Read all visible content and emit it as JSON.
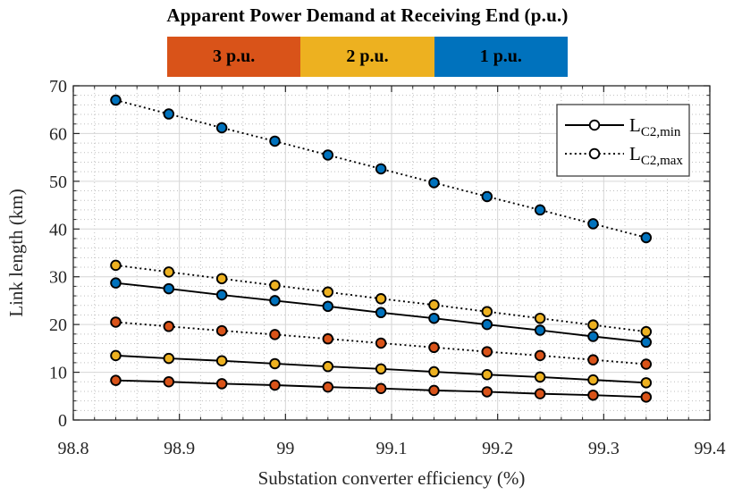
{
  "header": {
    "title": "Apparent Power Demand at Receiving End (p.u.)",
    "bands": [
      {
        "label": "3 p.u.",
        "color": "#D95319"
      },
      {
        "label": "2 p.u.",
        "color": "#EDB120"
      },
      {
        "label": "1 p.u.",
        "color": "#0072BD"
      }
    ]
  },
  "chart_data": {
    "type": "line",
    "title": "Apparent Power Demand at Receiving End (p.u.)",
    "xlabel": "Substation converter efficiency (%)",
    "ylabel": "Link length (km)",
    "xlim": [
      98.8,
      99.4
    ],
    "ylim": [
      0,
      70
    ],
    "xticks": [
      98.8,
      98.9,
      99.0,
      99.1,
      99.2,
      99.3,
      99.4
    ],
    "xtick_labels": [
      "98.8",
      "98.9",
      "99",
      "99.1",
      "99.2",
      "99.3",
      "99.4"
    ],
    "yticks": [
      0,
      10,
      20,
      30,
      40,
      50,
      60,
      70
    ],
    "ytick_labels": [
      "0",
      "10",
      "20",
      "30",
      "40",
      "50",
      "60",
      "70"
    ],
    "minor_x_step": 0.02,
    "minor_y_step": 2,
    "grid": true,
    "minor_grid": true,
    "legend_position": "upper-right",
    "legend": [
      {
        "label_main": "L",
        "label_sub": "C2,min",
        "style": "solid"
      },
      {
        "label_main": "L",
        "label_sub": "C2,max",
        "style": "dotted"
      }
    ],
    "colors": {
      "blue": "#0072BD",
      "yellow": "#EDB120",
      "orange": "#D95319"
    },
    "x": [
      98.84,
      98.89,
      98.94,
      98.99,
      99.04,
      99.09,
      99.14,
      99.19,
      99.24,
      99.29,
      99.34
    ],
    "series": [
      {
        "name": "LC2,max (1 p.u.)",
        "color": "#0072BD",
        "style": "dotted",
        "values": [
          67.0,
          64.1,
          61.2,
          58.4,
          55.5,
          52.6,
          49.7,
          46.8,
          44.0,
          41.1,
          38.2
        ]
      },
      {
        "name": "LC2,max (2 p.u.)",
        "color": "#EDB120",
        "style": "dotted",
        "values": [
          32.4,
          31.0,
          29.6,
          28.2,
          26.8,
          25.4,
          24.1,
          22.7,
          21.3,
          19.9,
          18.5
        ]
      },
      {
        "name": "LC2,min (1 p.u.)",
        "color": "#0072BD",
        "style": "solid",
        "values": [
          28.7,
          27.5,
          26.2,
          25.0,
          23.8,
          22.5,
          21.3,
          20.0,
          18.8,
          17.5,
          16.3
        ]
      },
      {
        "name": "LC2,max (3 p.u.)",
        "color": "#D95319",
        "style": "dotted",
        "values": [
          20.5,
          19.6,
          18.7,
          17.9,
          17.0,
          16.1,
          15.2,
          14.3,
          13.5,
          12.6,
          11.7
        ]
      },
      {
        "name": "LC2,min (2 p.u.)",
        "color": "#EDB120",
        "style": "solid",
        "values": [
          13.5,
          12.9,
          12.4,
          11.8,
          11.2,
          10.7,
          10.1,
          9.5,
          9.0,
          8.4,
          7.8
        ]
      },
      {
        "name": "LC2,min (3 p.u.)",
        "color": "#D95319",
        "style": "solid",
        "values": [
          8.3,
          8.0,
          7.6,
          7.3,
          6.9,
          6.6,
          6.2,
          5.9,
          5.5,
          5.2,
          4.8
        ]
      }
    ]
  }
}
